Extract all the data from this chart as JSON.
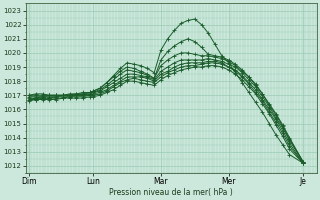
{
  "title": "Pression niveau de la mer( hPa )",
  "bg_color": "#cce8dc",
  "grid_color": "#99ccb3",
  "line_color": "#1a5c2a",
  "ylim": [
    1011.5,
    1023.5
  ],
  "yticks": [
    1012,
    1013,
    1014,
    1015,
    1016,
    1017,
    1018,
    1019,
    1020,
    1021,
    1022,
    1023
  ],
  "xlim": [
    0,
    4.3
  ],
  "day_positions": [
    0.05,
    1.0,
    2.0,
    3.0,
    4.1
  ],
  "day_labels": [
    "Dim",
    "Lun",
    "Mar",
    "Mer",
    "Je"
  ],
  "series": [
    [
      0.05,
      1017.0,
      0.15,
      1017.1,
      0.25,
      1017.1,
      0.35,
      1017.0,
      0.45,
      1017.0,
      0.55,
      1017.0,
      0.65,
      1017.1,
      0.75,
      1017.1,
      0.85,
      1017.2,
      0.95,
      1017.2,
      1.0,
      1017.3,
      1.1,
      1017.5,
      1.2,
      1017.9,
      1.3,
      1018.4,
      1.4,
      1018.9,
      1.5,
      1019.3,
      1.6,
      1019.2,
      1.7,
      1019.1,
      1.8,
      1018.9,
      1.9,
      1018.6,
      2.0,
      1020.2,
      2.1,
      1021.0,
      2.2,
      1021.6,
      2.3,
      1022.1,
      2.4,
      1022.3,
      2.5,
      1022.4,
      2.6,
      1022.0,
      2.7,
      1021.4,
      2.8,
      1020.6,
      2.9,
      1019.8,
      3.0,
      1019.3,
      3.1,
      1018.6,
      3.2,
      1017.9,
      3.3,
      1017.2,
      3.4,
      1016.5,
      3.5,
      1015.8,
      3.6,
      1015.0,
      3.7,
      1014.2,
      3.8,
      1013.5,
      3.9,
      1012.8,
      4.1,
      1012.2
    ],
    [
      0.05,
      1017.0,
      0.15,
      1017.0,
      0.25,
      1017.0,
      0.35,
      1017.0,
      0.45,
      1017.0,
      0.55,
      1017.0,
      0.65,
      1017.0,
      0.75,
      1017.1,
      0.85,
      1017.1,
      0.95,
      1017.2,
      1.0,
      1017.3,
      1.1,
      1017.5,
      1.2,
      1017.9,
      1.3,
      1018.3,
      1.4,
      1018.7,
      1.5,
      1019.0,
      1.6,
      1018.9,
      1.7,
      1018.7,
      1.8,
      1018.5,
      1.9,
      1018.2,
      2.0,
      1019.5,
      2.1,
      1020.1,
      2.2,
      1020.5,
      2.3,
      1020.8,
      2.4,
      1021.0,
      2.5,
      1020.8,
      2.6,
      1020.4,
      2.7,
      1019.9,
      2.8,
      1019.8,
      2.9,
      1019.7,
      3.0,
      1019.5,
      3.1,
      1019.2,
      3.2,
      1018.8,
      3.3,
      1018.3,
      3.4,
      1017.8,
      3.5,
      1017.1,
      3.6,
      1016.4,
      3.7,
      1015.7,
      3.8,
      1014.9,
      3.9,
      1014.0,
      4.1,
      1012.3
    ],
    [
      0.05,
      1016.9,
      0.15,
      1016.9,
      0.25,
      1016.9,
      0.35,
      1017.0,
      0.45,
      1017.0,
      0.55,
      1017.0,
      0.65,
      1017.0,
      0.75,
      1017.0,
      0.85,
      1017.1,
      0.95,
      1017.1,
      1.0,
      1017.2,
      1.1,
      1017.4,
      1.2,
      1017.7,
      1.3,
      1018.1,
      1.4,
      1018.5,
      1.5,
      1018.8,
      1.6,
      1018.7,
      1.7,
      1018.6,
      1.8,
      1018.4,
      1.9,
      1018.2,
      2.0,
      1019.1,
      2.1,
      1019.5,
      2.2,
      1019.8,
      2.3,
      1020.0,
      2.4,
      1020.0,
      2.5,
      1019.9,
      2.6,
      1019.8,
      2.7,
      1019.8,
      2.8,
      1019.7,
      2.9,
      1019.6,
      3.0,
      1019.4,
      3.1,
      1019.1,
      3.2,
      1018.7,
      3.3,
      1018.3,
      3.4,
      1017.7,
      3.5,
      1017.1,
      3.6,
      1016.3,
      3.7,
      1015.6,
      3.8,
      1014.8,
      3.9,
      1013.9,
      4.1,
      1012.3
    ],
    [
      0.05,
      1016.8,
      0.15,
      1016.8,
      0.25,
      1016.9,
      0.35,
      1016.9,
      0.45,
      1016.9,
      0.55,
      1017.0,
      0.65,
      1017.0,
      0.75,
      1017.0,
      0.85,
      1017.0,
      0.95,
      1017.1,
      1.0,
      1017.2,
      1.1,
      1017.3,
      1.2,
      1017.6,
      1.3,
      1017.9,
      1.4,
      1018.2,
      1.5,
      1018.5,
      1.6,
      1018.5,
      1.7,
      1018.4,
      1.8,
      1018.3,
      1.9,
      1018.1,
      2.0,
      1018.7,
      2.1,
      1019.0,
      2.2,
      1019.3,
      2.3,
      1019.5,
      2.4,
      1019.5,
      2.5,
      1019.5,
      2.6,
      1019.5,
      2.7,
      1019.6,
      2.8,
      1019.5,
      2.9,
      1019.4,
      3.0,
      1019.2,
      3.1,
      1019.0,
      3.2,
      1018.6,
      3.3,
      1018.1,
      3.4,
      1017.6,
      3.5,
      1016.9,
      3.6,
      1016.2,
      3.7,
      1015.4,
      3.8,
      1014.7,
      3.9,
      1013.8,
      4.1,
      1012.3
    ],
    [
      0.05,
      1016.7,
      0.15,
      1016.8,
      0.25,
      1016.8,
      0.35,
      1016.8,
      0.45,
      1016.9,
      0.55,
      1016.9,
      0.65,
      1016.9,
      0.75,
      1017.0,
      0.85,
      1017.0,
      0.95,
      1017.0,
      1.0,
      1017.1,
      1.1,
      1017.2,
      1.2,
      1017.4,
      1.3,
      1017.7,
      1.4,
      1018.0,
      1.5,
      1018.3,
      1.6,
      1018.3,
      1.7,
      1018.3,
      1.8,
      1018.2,
      1.9,
      1018.0,
      2.0,
      1018.5,
      2.1,
      1018.7,
      2.2,
      1019.0,
      2.3,
      1019.2,
      2.4,
      1019.3,
      2.5,
      1019.3,
      2.6,
      1019.3,
      2.7,
      1019.4,
      2.8,
      1019.4,
      2.9,
      1019.3,
      3.0,
      1019.0,
      3.1,
      1018.8,
      3.2,
      1018.4,
      3.3,
      1017.9,
      3.4,
      1017.4,
      3.5,
      1016.7,
      3.6,
      1016.0,
      3.7,
      1015.3,
      3.8,
      1014.5,
      3.9,
      1013.6,
      4.1,
      1012.2
    ],
    [
      0.05,
      1016.7,
      0.15,
      1016.7,
      0.25,
      1016.8,
      0.35,
      1016.8,
      0.45,
      1016.8,
      0.55,
      1016.8,
      0.65,
      1016.9,
      0.75,
      1016.9,
      0.85,
      1016.9,
      0.95,
      1017.0,
      1.0,
      1017.0,
      1.1,
      1017.1,
      1.2,
      1017.3,
      1.3,
      1017.6,
      1.4,
      1017.9,
      1.5,
      1018.1,
      1.6,
      1018.2,
      1.7,
      1018.1,
      1.8,
      1018.0,
      1.9,
      1017.9,
      2.0,
      1018.3,
      2.1,
      1018.6,
      2.2,
      1018.8,
      2.3,
      1019.0,
      2.4,
      1019.1,
      2.5,
      1019.1,
      2.6,
      1019.2,
      2.7,
      1019.3,
      2.8,
      1019.3,
      2.9,
      1019.2,
      3.0,
      1019.0,
      3.1,
      1018.7,
      3.2,
      1018.3,
      3.3,
      1017.8,
      3.4,
      1017.2,
      3.5,
      1016.6,
      3.6,
      1015.8,
      3.7,
      1015.1,
      3.8,
      1014.3,
      3.9,
      1013.4,
      4.1,
      1012.2
    ],
    [
      0.05,
      1016.6,
      0.15,
      1016.7,
      0.25,
      1016.7,
      0.35,
      1016.7,
      0.45,
      1016.7,
      0.55,
      1016.8,
      0.65,
      1016.8,
      0.75,
      1016.8,
      0.85,
      1016.8,
      0.95,
      1016.9,
      1.0,
      1016.9,
      1.1,
      1017.0,
      1.2,
      1017.2,
      1.3,
      1017.4,
      1.4,
      1017.7,
      1.5,
      1018.0,
      1.6,
      1018.0,
      1.7,
      1017.9,
      1.8,
      1017.8,
      1.9,
      1017.7,
      2.0,
      1018.1,
      2.1,
      1018.4,
      2.2,
      1018.6,
      2.3,
      1018.8,
      2.4,
      1018.9,
      2.5,
      1019.0,
      2.6,
      1019.0,
      2.7,
      1019.1,
      2.8,
      1019.1,
      2.9,
      1019.0,
      3.0,
      1018.8,
      3.1,
      1018.5,
      3.2,
      1018.1,
      3.3,
      1017.6,
      3.4,
      1017.1,
      3.5,
      1016.4,
      3.6,
      1015.7,
      3.7,
      1014.9,
      3.8,
      1014.1,
      3.9,
      1013.2,
      4.1,
      1012.2
    ]
  ]
}
